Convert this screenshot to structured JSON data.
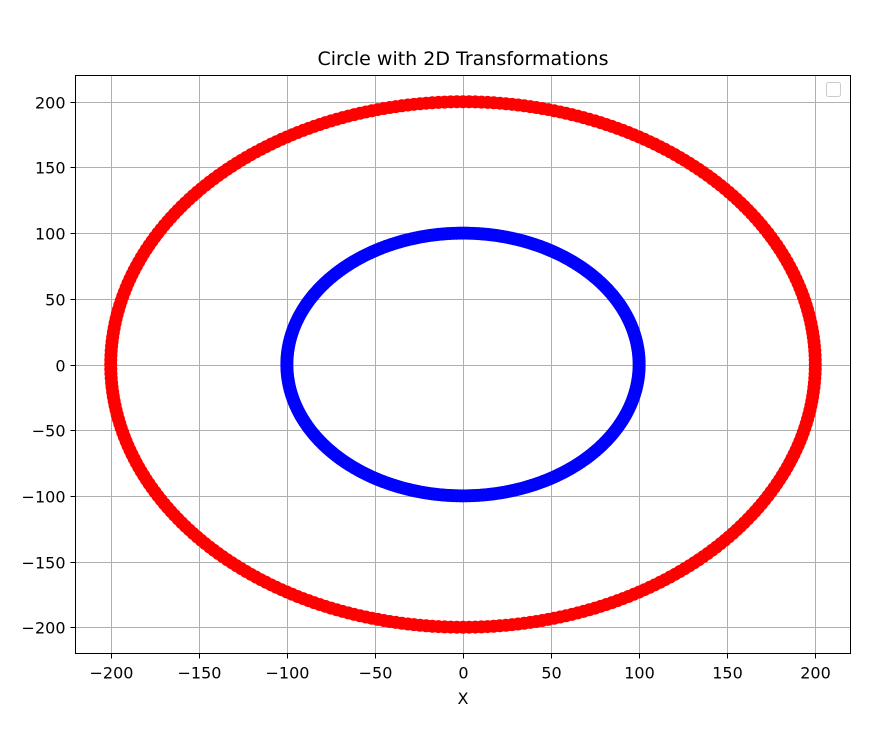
{
  "chart_data": {
    "type": "scatter",
    "title": "Circle with 2D Transformations",
    "xlabel": "X",
    "ylabel": "",
    "xlim": [
      -220,
      220
    ],
    "ylim": [
      -220,
      220
    ],
    "xticks": [
      -200,
      -150,
      -100,
      -50,
      0,
      50,
      100,
      150,
      200
    ],
    "yticks": [
      -200,
      -150,
      -100,
      -50,
      0,
      50,
      100,
      150,
      200
    ],
    "xtick_labels": [
      "−200",
      "−150",
      "−100",
      "−50",
      "0",
      "50",
      "100",
      "150",
      "200"
    ],
    "ytick_labels": [
      "−200",
      "−150",
      "−100",
      "−50",
      "0",
      "50",
      "100",
      "150",
      "200"
    ],
    "grid": true,
    "legend": {
      "placement": "top-right",
      "entries": []
    },
    "series": [
      {
        "shape": "circle",
        "center": [
          0,
          0
        ],
        "radius": 100,
        "color": "#0000ff"
      },
      {
        "shape": "circle",
        "center": [
          0,
          0
        ],
        "radius": 200,
        "color": "#ff0000"
      }
    ]
  }
}
